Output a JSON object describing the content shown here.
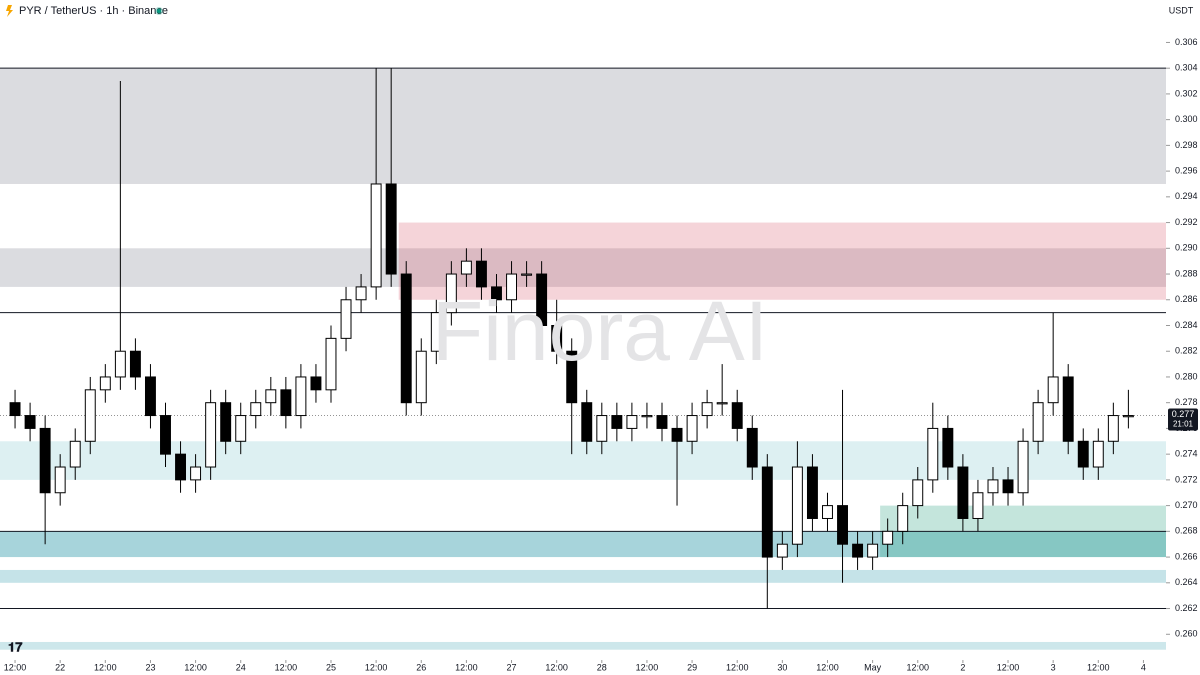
{
  "chart_data": {
    "type": "candlestick",
    "title": "PYR / TetherUS · 1h · Binance",
    "currency": "USDT",
    "watermark": "Finora AI",
    "last_price": 0.277,
    "countdown": "21:01",
    "up_color": "#ffffff",
    "down_color": "#000000",
    "xlim": [
      -4,
      306
    ],
    "ylim": [
      0.258,
      0.3093
    ],
    "xticks": [
      {
        "value": 0,
        "label": "12:00"
      },
      {
        "value": 12,
        "label": "22"
      },
      {
        "value": 24,
        "label": "12:00"
      },
      {
        "value": 36,
        "label": "23"
      },
      {
        "value": 48,
        "label": "12:00"
      },
      {
        "value": 60,
        "label": "24"
      },
      {
        "value": 72,
        "label": "12:00"
      },
      {
        "value": 84,
        "label": "25"
      },
      {
        "value": 96,
        "label": "12:00"
      },
      {
        "value": 108,
        "label": "26"
      },
      {
        "value": 120,
        "label": "12:00"
      },
      {
        "value": 132,
        "label": "27"
      },
      {
        "value": 144,
        "label": "12:00"
      },
      {
        "value": 156,
        "label": "28"
      },
      {
        "value": 168,
        "label": "12:00"
      },
      {
        "value": 180,
        "label": "29"
      },
      {
        "value": 192,
        "label": "12:00"
      },
      {
        "value": 204,
        "label": "30"
      },
      {
        "value": 216,
        "label": "12:00"
      },
      {
        "value": 228,
        "label": "May"
      },
      {
        "value": 240,
        "label": "12:00"
      },
      {
        "value": 252,
        "label": "2"
      },
      {
        "value": 264,
        "label": "12:00"
      },
      {
        "value": 276,
        "label": "3"
      },
      {
        "value": 288,
        "label": "12:00"
      },
      {
        "value": 300,
        "label": "4"
      }
    ],
    "yticks": [
      {
        "value": 0.26,
        "label": "0.260"
      },
      0.262,
      0.264,
      0.266,
      0.268,
      {
        "value": 0.27,
        "label": "0.270"
      },
      0.272,
      0.274,
      0.276,
      0.278,
      {
        "value": 0.28,
        "label": "0.280"
      },
      0.282,
      0.284,
      0.286,
      0.288,
      {
        "value": 0.29,
        "label": "0.290"
      },
      0.292,
      0.294,
      0.296,
      0.298,
      {
        "value": 0.3,
        "label": "0.300"
      },
      0.302,
      0.304,
      0.306
    ],
    "zones": [
      {
        "top": 0.304,
        "bottom": 0.295,
        "start": -4,
        "color": "rgba(170,172,180,0.42)"
      },
      {
        "top": 0.29,
        "bottom": 0.287,
        "start": -4,
        "color": "rgba(170,172,180,0.42)"
      },
      {
        "top": 0.292,
        "bottom": 0.286,
        "start": 102,
        "color": "rgba(220,100,120,0.28)"
      },
      {
        "top": 0.275,
        "bottom": 0.272,
        "start": -4,
        "color": "rgba(120,195,205,0.25)"
      },
      {
        "top": 0.268,
        "bottom": 0.266,
        "start": -4,
        "color": "rgba(60,160,175,0.45)"
      },
      {
        "top": 0.265,
        "bottom": 0.264,
        "start": -4,
        "color": "rgba(90,175,190,0.35)"
      },
      {
        "top": 0.27,
        "bottom": 0.266,
        "start": 230,
        "color": "rgba(60,170,140,0.3)"
      },
      {
        "top": 0.2594,
        "bottom": 0.2588,
        "start": -4,
        "color": "rgba(90,175,190,0.3)"
      }
    ],
    "levels": [
      0.304,
      0.285,
      0.268,
      0.262
    ],
    "x": [
      0,
      4,
      8,
      12,
      16,
      20,
      24,
      28,
      32,
      36,
      40,
      44,
      48,
      52,
      56,
      60,
      64,
      68,
      72,
      76,
      80,
      84,
      88,
      92,
      96,
      100,
      104,
      108,
      112,
      116,
      120,
      124,
      128,
      132,
      136,
      140,
      144,
      148,
      152,
      156,
      160,
      164,
      168,
      172,
      176,
      180,
      184,
      188,
      192,
      196,
      200,
      204,
      208,
      212,
      216,
      220,
      224,
      228,
      232,
      236,
      240,
      244,
      248,
      252,
      256,
      260,
      264,
      268,
      272,
      276,
      280,
      284,
      288,
      292,
      296
    ],
    "open": [
      0.278,
      0.277,
      0.276,
      0.271,
      0.273,
      0.275,
      0.279,
      0.28,
      0.282,
      0.28,
      0.277,
      0.274,
      0.272,
      0.273,
      0.278,
      0.275,
      0.277,
      0.278,
      0.279,
      0.277,
      0.28,
      0.279,
      0.283,
      0.286,
      0.287,
      0.295,
      0.288,
      0.278,
      0.282,
      0.285,
      0.288,
      0.289,
      0.287,
      0.286,
      0.288,
      0.288,
      0.284,
      0.282,
      0.278,
      0.275,
      0.277,
      0.276,
      0.277,
      0.277,
      0.276,
      0.275,
      0.277,
      0.278,
      0.278,
      0.276,
      0.273,
      0.266,
      0.267,
      0.273,
      0.269,
      0.27,
      0.267,
      0.266,
      0.267,
      0.268,
      0.27,
      0.272,
      0.276,
      0.273,
      0.269,
      0.271,
      0.272,
      0.271,
      0.275,
      0.278,
      0.28,
      0.275,
      0.273,
      0.275,
      0.277
    ],
    "high": [
      0.279,
      0.278,
      0.277,
      0.274,
      0.276,
      0.28,
      0.281,
      0.303,
      0.283,
      0.281,
      0.278,
      0.275,
      0.274,
      0.279,
      0.279,
      0.278,
      0.279,
      0.28,
      0.28,
      0.281,
      0.281,
      0.284,
      0.287,
      0.288,
      0.304,
      0.304,
      0.289,
      0.283,
      0.286,
      0.289,
      0.29,
      0.29,
      0.288,
      0.289,
      0.289,
      0.289,
      0.286,
      0.283,
      0.279,
      0.278,
      0.278,
      0.278,
      0.278,
      0.278,
      0.277,
      0.278,
      0.279,
      0.281,
      0.279,
      0.277,
      0.274,
      0.268,
      0.275,
      0.274,
      0.271,
      0.279,
      0.268,
      0.268,
      0.269,
      0.271,
      0.273,
      0.278,
      0.277,
      0.274,
      0.272,
      0.273,
      0.273,
      0.276,
      0.279,
      0.285,
      0.281,
      0.276,
      0.276,
      0.278,
      0.279
    ],
    "low": [
      0.276,
      0.275,
      0.267,
      0.27,
      0.272,
      0.274,
      0.278,
      0.279,
      0.279,
      0.276,
      0.273,
      0.271,
      0.271,
      0.272,
      0.274,
      0.274,
      0.276,
      0.277,
      0.276,
      0.276,
      0.278,
      0.278,
      0.282,
      0.285,
      0.286,
      0.287,
      0.277,
      0.277,
      0.281,
      0.284,
      0.287,
      0.286,
      0.285,
      0.285,
      0.287,
      0.283,
      0.281,
      0.274,
      0.274,
      0.274,
      0.275,
      0.275,
      0.276,
      0.275,
      0.27,
      0.274,
      0.276,
      0.277,
      0.275,
      0.272,
      0.262,
      0.265,
      0.266,
      0.268,
      0.268,
      0.264,
      0.265,
      0.265,
      0.266,
      0.267,
      0.269,
      0.271,
      0.272,
      0.268,
      0.268,
      0.27,
      0.27,
      0.27,
      0.274,
      0.277,
      0.274,
      0.272,
      0.272,
      0.274,
      0.276
    ],
    "close": [
      0.277,
      0.276,
      0.271,
      0.273,
      0.275,
      0.279,
      0.28,
      0.282,
      0.28,
      0.277,
      0.274,
      0.272,
      0.273,
      0.278,
      0.275,
      0.277,
      0.278,
      0.279,
      0.277,
      0.28,
      0.279,
      0.283,
      0.286,
      0.287,
      0.295,
      0.288,
      0.278,
      0.282,
      0.285,
      0.288,
      0.289,
      0.287,
      0.286,
      0.288,
      0.288,
      0.284,
      0.282,
      0.278,
      0.275,
      0.277,
      0.276,
      0.277,
      0.277,
      0.276,
      0.275,
      0.277,
      0.278,
      0.278,
      0.276,
      0.273,
      0.266,
      0.267,
      0.273,
      0.269,
      0.27,
      0.267,
      0.266,
      0.267,
      0.268,
      0.27,
      0.272,
      0.276,
      0.273,
      0.269,
      0.271,
      0.272,
      0.271,
      0.275,
      0.278,
      0.28,
      0.275,
      0.273,
      0.275,
      0.277,
      0.277
    ]
  }
}
